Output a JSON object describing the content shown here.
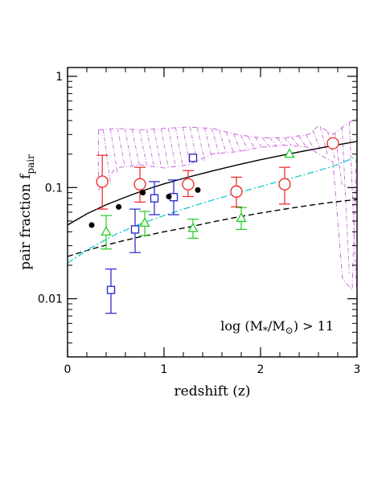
{
  "chart_data": {
    "type": "scatter",
    "title": "",
    "xlabel": "redshift (z)",
    "ylabel": "pair fraction f",
    "ylabel_sub": "pair",
    "xlim": [
      0,
      3
    ],
    "ylim": [
      0.003,
      1.2
    ],
    "yscale": "log",
    "grid": false,
    "xticks": [
      0,
      1,
      2,
      3
    ],
    "xtick_labels": [
      "0",
      "1",
      "2",
      "3"
    ],
    "yticks": [
      0.01,
      0.1,
      1
    ],
    "ytick_labels": [
      "0.01",
      "0.1",
      "1"
    ],
    "annotation": {
      "prefix": "log (M",
      "sub1": "*",
      "mid": "/M",
      "sub2": "⊙",
      "suffix": ") > 11"
    },
    "colors": {
      "red": "#ee2222",
      "blue": "#2222cc",
      "green": "#22cc22",
      "black": "#000000",
      "cyan": "#22cccc",
      "violet": "#cc66dd"
    },
    "series": [
      {
        "marker": "circle-open",
        "color": "#ee2222",
        "points": [
          {
            "x": 0.36,
            "y": 0.113,
            "lo": 0.064,
            "hi": 0.195
          },
          {
            "x": 0.75,
            "y": 0.107,
            "lo": 0.074,
            "hi": 0.152
          },
          {
            "x": 1.25,
            "y": 0.107,
            "lo": 0.083,
            "hi": 0.142
          },
          {
            "x": 1.75,
            "y": 0.092,
            "lo": 0.067,
            "hi": 0.124
          },
          {
            "x": 2.25,
            "y": 0.107,
            "lo": 0.071,
            "hi": 0.152
          },
          {
            "x": 2.75,
            "y": 0.25,
            "lo": null,
            "hi": null
          }
        ]
      },
      {
        "marker": "square-open",
        "color": "#2222cc",
        "points": [
          {
            "x": 0.45,
            "y": 0.012,
            "lo": 0.0074,
            "hi": 0.0185
          },
          {
            "x": 0.7,
            "y": 0.042,
            "lo": 0.026,
            "hi": 0.064
          },
          {
            "x": 0.9,
            "y": 0.08,
            "lo": 0.057,
            "hi": 0.113
          },
          {
            "x": 1.1,
            "y": 0.082,
            "lo": 0.057,
            "hi": 0.117
          },
          {
            "x": 1.3,
            "y": 0.185,
            "lo": null,
            "hi": null
          }
        ]
      },
      {
        "marker": "triangle-open",
        "color": "#22cc22",
        "points": [
          {
            "x": 0.4,
            "y": 0.04,
            "lo": 0.028,
            "hi": 0.056
          },
          {
            "x": 0.8,
            "y": 0.048,
            "lo": 0.037,
            "hi": 0.061
          },
          {
            "x": 1.3,
            "y": 0.043,
            "lo": 0.035,
            "hi": 0.052
          },
          {
            "x": 1.8,
            "y": 0.053,
            "lo": 0.042,
            "hi": 0.066
          },
          {
            "x": 2.3,
            "y": 0.2,
            "lo": null,
            "hi": null
          }
        ]
      },
      {
        "marker": "circle-filled",
        "color": "#000000",
        "points": [
          {
            "x": 0.25,
            "y": 0.046
          },
          {
            "x": 0.53,
            "y": 0.067
          },
          {
            "x": 0.78,
            "y": 0.09
          },
          {
            "x": 1.05,
            "y": 0.083
          },
          {
            "x": 1.35,
            "y": 0.095
          }
        ]
      }
    ],
    "curves": [
      {
        "style": "solid",
        "color": "#000000",
        "x": [
          0,
          0.2,
          0.4,
          0.6,
          0.8,
          1.0,
          1.25,
          1.5,
          1.75,
          2.0,
          2.25,
          2.5,
          2.75,
          3.0
        ],
        "y": [
          0.046,
          0.058,
          0.07,
          0.082,
          0.095,
          0.108,
          0.124,
          0.141,
          0.159,
          0.178,
          0.197,
          0.217,
          0.238,
          0.26
        ]
      },
      {
        "style": "dashed",
        "color": "#000000",
        "x": [
          0,
          0.25,
          0.5,
          0.75,
          1.0,
          1.25,
          1.5,
          1.75,
          2.0,
          2.25,
          2.5,
          2.75,
          3.0
        ],
        "y": [
          0.024,
          0.028,
          0.032,
          0.036,
          0.04,
          0.044,
          0.049,
          0.054,
          0.059,
          0.064,
          0.069,
          0.074,
          0.078
        ]
      },
      {
        "style": "dashdot",
        "color": "#22cccc",
        "x": [
          0,
          0.25,
          0.5,
          0.75,
          1.0,
          1.25,
          1.5,
          1.75,
          2.0,
          2.25,
          2.5,
          2.75,
          3.0
        ],
        "y": [
          0.021,
          0.029,
          0.038,
          0.047,
          0.056,
          0.066,
          0.077,
          0.089,
          0.102,
          0.117,
          0.134,
          0.155,
          0.19
        ]
      }
    ],
    "band": {
      "color": "#cc66dd",
      "x": [
        0.32,
        0.5,
        0.75,
        1.0,
        1.25,
        1.5,
        1.75,
        2.0,
        2.25,
        2.5,
        2.6,
        2.75,
        2.85,
        2.95,
        3.0
      ],
      "upper": [
        0.33,
        0.34,
        0.33,
        0.34,
        0.35,
        0.34,
        0.3,
        0.28,
        0.28,
        0.3,
        0.36,
        0.3,
        0.35,
        0.4,
        0.42
      ],
      "lower": [
        0.095,
        0.15,
        0.16,
        0.15,
        0.16,
        0.2,
        0.21,
        0.23,
        0.24,
        0.23,
        0.2,
        0.17,
        0.015,
        0.012,
        0.3
      ]
    }
  }
}
